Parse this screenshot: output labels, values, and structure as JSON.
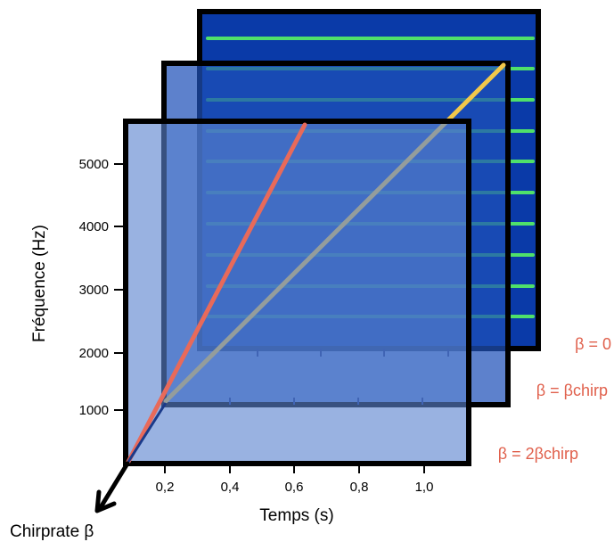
{
  "figure": {
    "ylabel": "Fréquence (Hz)",
    "xlabel": "Temps (s)",
    "depth_label": "Chirprate β",
    "y_ticks": [
      "5000",
      "4000",
      "3000",
      "2000",
      "1000"
    ],
    "x_ticks": [
      "0,2",
      "0,4",
      "0,6",
      "0,8",
      "1,0"
    ]
  },
  "planes": [
    {
      "label": "β = 0",
      "fill": "#0a3aa8",
      "line_color": "#4fe06a",
      "line_type": "horizontal-harmonics"
    },
    {
      "label": "β = βchirp",
      "fill": "#3a66bf",
      "line_color": "#f2c84a",
      "line_type": "chirp"
    },
    {
      "label": "β = 2βchirp",
      "fill": "#7d9ed9",
      "line_color": "#e86a5a",
      "line_type": "chirp-steep"
    }
  ],
  "colors": {
    "frame": "#000000",
    "label": "#e0604c",
    "axis_text": "#000000"
  }
}
